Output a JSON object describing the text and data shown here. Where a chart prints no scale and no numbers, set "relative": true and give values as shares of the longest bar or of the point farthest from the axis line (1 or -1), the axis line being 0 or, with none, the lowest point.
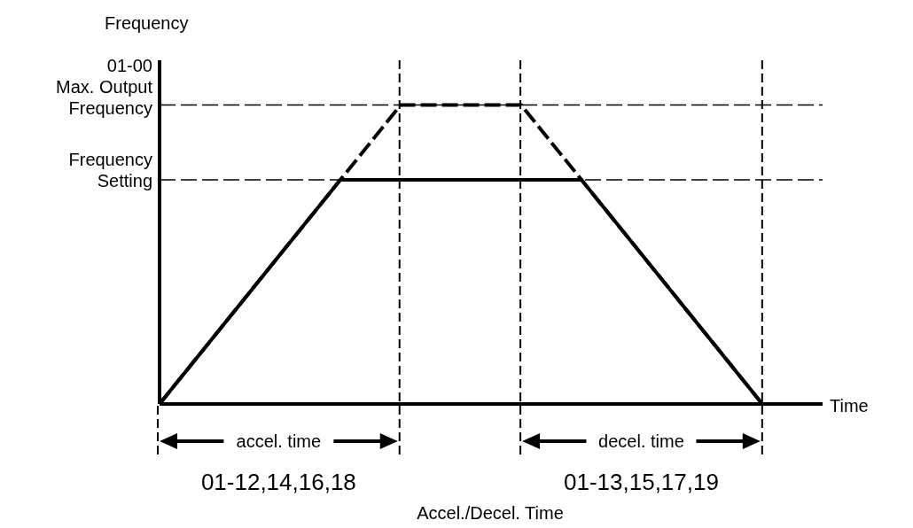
{
  "chart_data": {
    "type": "line",
    "relative": true,
    "ylabel": "Frequency",
    "xlabel": "Time",
    "ylim": [
      0,
      1.15
    ],
    "grid": "x",
    "categories": [
      null,
      null,
      null,
      null,
      null,
      null,
      null,
      null,
      null,
      null,
      null,
      null
    ],
    "series": [
      {
        "color": "#000000",
        "line_style": "dashed",
        "values": [
          0,
          null,
          null,
          null,
          1,
          null,
          1,
          null,
          null,
          null,
          0,
          null
        ]
      },
      {
        "color": "#000000",
        "line_style": "solid",
        "values": [
          0,
          null,
          null,
          0.75,
          null,
          null,
          null,
          0.75,
          null,
          null,
          0,
          null
        ]
      }
    ],
    "ref_lines": [
      {
        "axis": "y",
        "value": 1,
        "label": "01-00\nMax. Output\nFrequency",
        "line_style": "dashed"
      },
      {
        "axis": "y",
        "value": 0.75,
        "label": "Frequency\nSetting",
        "line_style": "dashed"
      }
    ],
    "annotations": [
      "accel. time",
      "decel. time",
      "01-12,14,16,18",
      "01-13,15,17,19",
      "Accel./Decel. Time"
    ]
  }
}
